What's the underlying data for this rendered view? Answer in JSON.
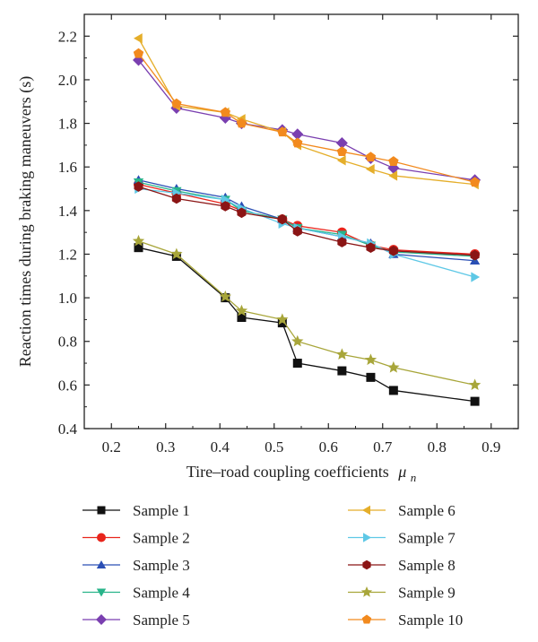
{
  "chart_data": {
    "type": "line",
    "xlabel": "Tire–road coupling coefficients",
    "xlabel_symbol": "μ",
    "xlabel_subscript": "n",
    "ylabel": "Reaction times during braking maneuvers (s)",
    "xlim": [
      0.15,
      0.95
    ],
    "ylim": [
      0.4,
      2.3
    ],
    "xticks": [
      0.2,
      0.3,
      0.4,
      0.5,
      0.6,
      0.7,
      0.8,
      0.9
    ],
    "xtick_labels": [
      "0.2",
      "0.3",
      "0.4",
      "0.5",
      "0.6",
      "0.7",
      "0.8",
      "0.9"
    ],
    "yticks": [
      0.4,
      0.6,
      0.8,
      1.0,
      1.2,
      1.4,
      1.6,
      1.8,
      2.0,
      2.2
    ],
    "ytick_labels": [
      "0.4",
      "0.6",
      "0.8",
      "1.0",
      "1.2",
      "1.4",
      "1.6",
      "1.8",
      "2.0",
      "2.2"
    ],
    "grid": false,
    "legend_position": "bottom",
    "x": [
      0.25,
      0.32,
      0.41,
      0.44,
      0.515,
      0.543,
      0.625,
      0.678,
      0.72,
      0.87
    ],
    "series": [
      {
        "name": "Sample 1",
        "color": "#111111",
        "marker": "square",
        "values": [
          1.23,
          1.19,
          1.0,
          0.91,
          0.885,
          0.7,
          0.665,
          0.635,
          0.575,
          0.525
        ]
      },
      {
        "name": "Sample 2",
        "color": "#e8251c",
        "marker": "circle",
        "values": [
          1.52,
          1.48,
          1.43,
          1.4,
          1.36,
          1.33,
          1.3,
          1.24,
          1.22,
          1.2
        ]
      },
      {
        "name": "Sample 3",
        "color": "#2a4fb5",
        "marker": "triangle-up",
        "values": [
          1.54,
          1.5,
          1.46,
          1.42,
          1.36,
          1.32,
          1.28,
          1.25,
          1.2,
          1.17
        ]
      },
      {
        "name": "Sample 4",
        "color": "#28b48a",
        "marker": "triangle-down",
        "values": [
          1.53,
          1.49,
          1.45,
          1.4,
          1.36,
          1.32,
          1.29,
          1.24,
          1.21,
          1.19
        ]
      },
      {
        "name": "Sample 5",
        "color": "#7a3fb0",
        "marker": "diamond",
        "values": [
          2.09,
          1.87,
          1.825,
          1.8,
          1.77,
          1.75,
          1.71,
          1.64,
          1.595,
          1.54
        ]
      },
      {
        "name": "Sample 6",
        "color": "#e5ae2a",
        "marker": "triangle-left",
        "values": [
          2.19,
          1.88,
          1.85,
          1.82,
          1.76,
          1.7,
          1.63,
          1.59,
          1.56,
          1.52
        ]
      },
      {
        "name": "Sample 7",
        "color": "#5ec8e6",
        "marker": "triangle-right",
        "values": [
          1.5,
          1.48,
          1.45,
          1.41,
          1.34,
          1.32,
          1.28,
          1.25,
          1.2,
          1.095
        ]
      },
      {
        "name": "Sample 8",
        "color": "#8b1515",
        "marker": "hexagon",
        "values": [
          1.51,
          1.455,
          1.42,
          1.39,
          1.36,
          1.305,
          1.255,
          1.23,
          1.215,
          1.195
        ]
      },
      {
        "name": "Sample 9",
        "color": "#a8a63a",
        "marker": "star",
        "values": [
          1.26,
          1.2,
          1.005,
          0.94,
          0.9,
          0.8,
          0.74,
          0.715,
          0.68,
          0.6
        ]
      },
      {
        "name": "Sample 10",
        "color": "#f28a1e",
        "marker": "pentagon",
        "values": [
          2.12,
          1.89,
          1.85,
          1.8,
          1.76,
          1.71,
          1.67,
          1.645,
          1.625,
          1.53
        ]
      }
    ]
  }
}
